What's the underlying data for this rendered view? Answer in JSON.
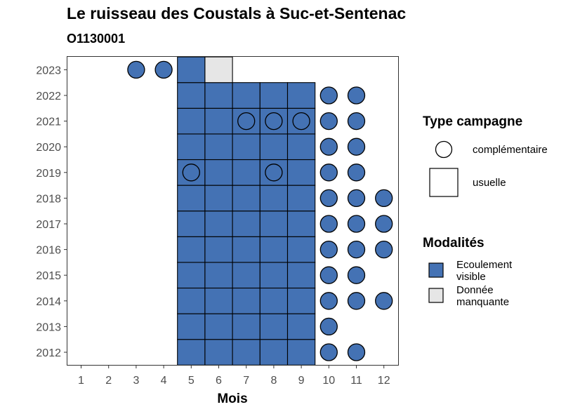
{
  "chart_data": {
    "type": "heatmap",
    "title": "Le ruisseau des Coustals à Suc-et-Sentenac",
    "subtitle": "O1130001",
    "xlabel": "Mois",
    "ylabel": "",
    "x_ticks": [
      "1",
      "2",
      "3",
      "4",
      "5",
      "6",
      "7",
      "8",
      "9",
      "10",
      "11",
      "12"
    ],
    "y_ticks": [
      "2012",
      "2013",
      "2014",
      "2015",
      "2016",
      "2017",
      "2018",
      "2019",
      "2020",
      "2021",
      "2022",
      "2023"
    ],
    "colors": {
      "ecoulement_visible": "#4472b4",
      "donnee_manquante": "#e6e6e6",
      "outline": "#000000"
    },
    "legend": {
      "type_title": "Type campagne",
      "type_items": [
        {
          "label": "complémentaire",
          "shape": "circle"
        },
        {
          "label": "usuelle",
          "shape": "square"
        }
      ],
      "modalites_title": "Modalités",
      "modalites_items": [
        {
          "label_lines": [
            "Ecoulement",
            "visible"
          ],
          "key": "ecoulement_visible"
        },
        {
          "label_lines": [
            "Donnée",
            "manquante"
          ],
          "key": "donnee_manquante"
        }
      ]
    },
    "usuelle": [
      {
        "year": 2012,
        "months": [
          5,
          6,
          7,
          8,
          9
        ],
        "modalite": "ecoulement_visible"
      },
      {
        "year": 2013,
        "months": [
          5,
          6,
          7,
          8,
          9
        ],
        "modalite": "ecoulement_visible"
      },
      {
        "year": 2014,
        "months": [
          5,
          6,
          7,
          8,
          9
        ],
        "modalite": "ecoulement_visible"
      },
      {
        "year": 2015,
        "months": [
          5,
          6,
          7,
          8,
          9
        ],
        "modalite": "ecoulement_visible"
      },
      {
        "year": 2016,
        "months": [
          5,
          6,
          7,
          8,
          9
        ],
        "modalite": "ecoulement_visible"
      },
      {
        "year": 2017,
        "months": [
          5,
          6,
          7,
          8,
          9
        ],
        "modalite": "ecoulement_visible"
      },
      {
        "year": 2018,
        "months": [
          5,
          6,
          7,
          8,
          9
        ],
        "modalite": "ecoulement_visible"
      },
      {
        "year": 2019,
        "months": [
          5,
          6,
          7,
          8,
          9
        ],
        "modalite": "ecoulement_visible"
      },
      {
        "year": 2020,
        "months": [
          5,
          6,
          7,
          8,
          9
        ],
        "modalite": "ecoulement_visible"
      },
      {
        "year": 2021,
        "months": [
          5,
          6,
          7,
          8,
          9
        ],
        "modalite": "ecoulement_visible"
      },
      {
        "year": 2022,
        "months": [
          5,
          6,
          7,
          8,
          9
        ],
        "modalite": "ecoulement_visible"
      },
      {
        "year": 2023,
        "months": [
          5
        ],
        "modalite": "ecoulement_visible"
      },
      {
        "year": 2023,
        "months": [
          6
        ],
        "modalite": "donnee_manquante"
      }
    ],
    "complementaire": [
      {
        "year": 2012,
        "months": [
          10,
          11
        ]
      },
      {
        "year": 2013,
        "months": [
          10
        ]
      },
      {
        "year": 2014,
        "months": [
          10,
          11,
          12
        ]
      },
      {
        "year": 2015,
        "months": [
          10,
          11
        ]
      },
      {
        "year": 2016,
        "months": [
          10,
          11,
          12
        ]
      },
      {
        "year": 2017,
        "months": [
          10,
          11,
          12
        ]
      },
      {
        "year": 2018,
        "months": [
          10,
          11,
          12
        ]
      },
      {
        "year": 2019,
        "months": [
          5,
          8,
          10,
          11
        ]
      },
      {
        "year": 2020,
        "months": [
          10,
          11
        ]
      },
      {
        "year": 2021,
        "months": [
          7,
          8,
          9,
          10,
          11
        ]
      },
      {
        "year": 2022,
        "months": [
          10,
          11
        ]
      },
      {
        "year": 2023,
        "months": [
          3,
          4
        ]
      }
    ]
  }
}
